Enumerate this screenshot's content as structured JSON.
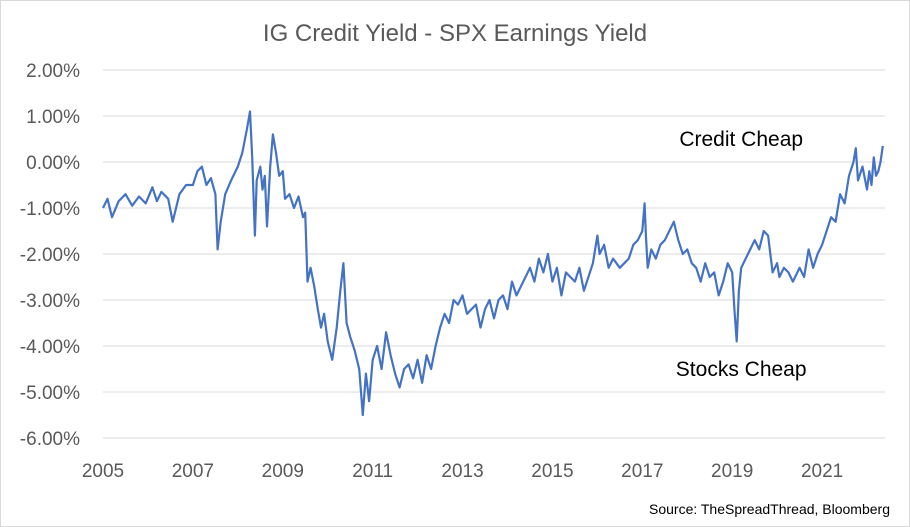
{
  "chart_data": {
    "type": "line",
    "title": "IG Credit Yield - SPX Earnings Yield",
    "xlabel": "",
    "ylabel": "",
    "xlim": [
      2005,
      2022.4
    ],
    "ylim": [
      -6,
      2
    ],
    "x_ticks": [
      "2005",
      "2007",
      "2009",
      "2011",
      "2013",
      "2015",
      "2017",
      "2019",
      "2021"
    ],
    "y_ticks": [
      "2.00%",
      "1.00%",
      "0.00%",
      "-1.00%",
      "-2.00%",
      "-3.00%",
      "-4.00%",
      "-5.00%",
      "-6.00%"
    ],
    "grid": "horizontal",
    "line_color": "#4472C4",
    "annotations": [
      {
        "text": "Credit Cheap",
        "x": 2019.2,
        "y": 0.5
      },
      {
        "text": "Stocks Cheap",
        "x": 2019.2,
        "y": -4.5
      }
    ],
    "source": "Source: TheSpreadThread, Bloomberg",
    "series": [
      {
        "points": [
          [
            2005.0,
            -1.0
          ],
          [
            2005.1,
            -0.8
          ],
          [
            2005.2,
            -1.2
          ],
          [
            2005.35,
            -0.85
          ],
          [
            2005.5,
            -0.7
          ],
          [
            2005.65,
            -0.95
          ],
          [
            2005.8,
            -0.75
          ],
          [
            2005.95,
            -0.9
          ],
          [
            2006.1,
            -0.55
          ],
          [
            2006.2,
            -0.85
          ],
          [
            2006.3,
            -0.65
          ],
          [
            2006.45,
            -0.8
          ],
          [
            2006.55,
            -1.3
          ],
          [
            2006.7,
            -0.7
          ],
          [
            2006.85,
            -0.5
          ],
          [
            2007.0,
            -0.5
          ],
          [
            2007.1,
            -0.2
          ],
          [
            2007.2,
            -0.1
          ],
          [
            2007.3,
            -0.5
          ],
          [
            2007.4,
            -0.35
          ],
          [
            2007.5,
            -0.7
          ],
          [
            2007.55,
            -1.9
          ],
          [
            2007.62,
            -1.3
          ],
          [
            2007.72,
            -0.7
          ],
          [
            2007.85,
            -0.4
          ],
          [
            2008.0,
            -0.1
          ],
          [
            2008.1,
            0.2
          ],
          [
            2008.2,
            0.7
          ],
          [
            2008.27,
            1.1
          ],
          [
            2008.32,
            0.1
          ],
          [
            2008.38,
            -1.6
          ],
          [
            2008.42,
            -0.4
          ],
          [
            2008.5,
            -0.1
          ],
          [
            2008.55,
            -0.6
          ],
          [
            2008.6,
            -0.3
          ],
          [
            2008.65,
            -1.4
          ],
          [
            2008.72,
            -0.1
          ],
          [
            2008.78,
            0.6
          ],
          [
            2008.85,
            0.2
          ],
          [
            2008.92,
            -0.3
          ],
          [
            2009.0,
            -0.2
          ],
          [
            2009.05,
            -0.8
          ],
          [
            2009.15,
            -0.7
          ],
          [
            2009.25,
            -1.0
          ],
          [
            2009.35,
            -0.75
          ],
          [
            2009.45,
            -1.2
          ],
          [
            2009.5,
            -1.1
          ],
          [
            2009.55,
            -2.6
          ],
          [
            2009.62,
            -2.3
          ],
          [
            2009.7,
            -2.7
          ],
          [
            2009.78,
            -3.2
          ],
          [
            2009.85,
            -3.6
          ],
          [
            2009.92,
            -3.3
          ],
          [
            2010.0,
            -3.9
          ],
          [
            2010.1,
            -4.3
          ],
          [
            2010.2,
            -3.6
          ],
          [
            2010.28,
            -2.8
          ],
          [
            2010.35,
            -2.2
          ],
          [
            2010.42,
            -3.5
          ],
          [
            2010.5,
            -3.8
          ],
          [
            2010.6,
            -4.1
          ],
          [
            2010.7,
            -4.5
          ],
          [
            2010.78,
            -5.5
          ],
          [
            2010.85,
            -4.6
          ],
          [
            2010.92,
            -5.2
          ],
          [
            2011.0,
            -4.3
          ],
          [
            2011.1,
            -4.0
          ],
          [
            2011.2,
            -4.5
          ],
          [
            2011.3,
            -3.7
          ],
          [
            2011.4,
            -4.2
          ],
          [
            2011.5,
            -4.6
          ],
          [
            2011.6,
            -4.9
          ],
          [
            2011.7,
            -4.5
          ],
          [
            2011.8,
            -4.4
          ],
          [
            2011.9,
            -4.7
          ],
          [
            2012.0,
            -4.3
          ],
          [
            2012.1,
            -4.8
          ],
          [
            2012.2,
            -4.2
          ],
          [
            2012.3,
            -4.5
          ],
          [
            2012.4,
            -4.0
          ],
          [
            2012.5,
            -3.6
          ],
          [
            2012.6,
            -3.3
          ],
          [
            2012.7,
            -3.5
          ],
          [
            2012.8,
            -3.0
          ],
          [
            2012.9,
            -3.1
          ],
          [
            2013.0,
            -2.9
          ],
          [
            2013.1,
            -3.3
          ],
          [
            2013.2,
            -3.2
          ],
          [
            2013.3,
            -3.1
          ],
          [
            2013.4,
            -3.6
          ],
          [
            2013.5,
            -3.2
          ],
          [
            2013.6,
            -3.0
          ],
          [
            2013.7,
            -3.4
          ],
          [
            2013.8,
            -3.0
          ],
          [
            2013.9,
            -2.9
          ],
          [
            2014.0,
            -3.2
          ],
          [
            2014.1,
            -2.6
          ],
          [
            2014.2,
            -2.9
          ],
          [
            2014.3,
            -2.7
          ],
          [
            2014.4,
            -2.5
          ],
          [
            2014.5,
            -2.3
          ],
          [
            2014.6,
            -2.6
          ],
          [
            2014.7,
            -2.1
          ],
          [
            2014.8,
            -2.4
          ],
          [
            2014.9,
            -2.0
          ],
          [
            2015.0,
            -2.6
          ],
          [
            2015.1,
            -2.3
          ],
          [
            2015.2,
            -2.9
          ],
          [
            2015.3,
            -2.4
          ],
          [
            2015.4,
            -2.5
          ],
          [
            2015.5,
            -2.6
          ],
          [
            2015.6,
            -2.3
          ],
          [
            2015.7,
            -2.8
          ],
          [
            2015.8,
            -2.5
          ],
          [
            2015.9,
            -2.2
          ],
          [
            2016.0,
            -1.6
          ],
          [
            2016.05,
            -2.0
          ],
          [
            2016.15,
            -1.8
          ],
          [
            2016.25,
            -2.3
          ],
          [
            2016.35,
            -2.1
          ],
          [
            2016.5,
            -2.3
          ],
          [
            2016.6,
            -2.2
          ],
          [
            2016.7,
            -2.1
          ],
          [
            2016.8,
            -1.8
          ],
          [
            2016.9,
            -1.7
          ],
          [
            2017.0,
            -1.5
          ],
          [
            2017.05,
            -0.9
          ],
          [
            2017.08,
            -1.6
          ],
          [
            2017.12,
            -2.3
          ],
          [
            2017.2,
            -1.9
          ],
          [
            2017.3,
            -2.1
          ],
          [
            2017.4,
            -1.8
          ],
          [
            2017.5,
            -1.7
          ],
          [
            2017.6,
            -1.5
          ],
          [
            2017.7,
            -1.3
          ],
          [
            2017.8,
            -1.7
          ],
          [
            2017.9,
            -2.0
          ],
          [
            2018.0,
            -1.9
          ],
          [
            2018.1,
            -2.2
          ],
          [
            2018.2,
            -2.3
          ],
          [
            2018.3,
            -2.6
          ],
          [
            2018.4,
            -2.2
          ],
          [
            2018.5,
            -2.5
          ],
          [
            2018.6,
            -2.4
          ],
          [
            2018.7,
            -2.9
          ],
          [
            2018.8,
            -2.6
          ],
          [
            2018.9,
            -2.2
          ],
          [
            2019.0,
            -2.4
          ],
          [
            2019.05,
            -3.2
          ],
          [
            2019.1,
            -3.9
          ],
          [
            2019.15,
            -2.8
          ],
          [
            2019.2,
            -2.3
          ],
          [
            2019.3,
            -2.1
          ],
          [
            2019.4,
            -1.9
          ],
          [
            2019.5,
            -1.7
          ],
          [
            2019.6,
            -1.9
          ],
          [
            2019.7,
            -1.5
          ],
          [
            2019.8,
            -1.6
          ],
          [
            2019.9,
            -2.4
          ],
          [
            2020.0,
            -2.2
          ],
          [
            2020.05,
            -2.5
          ],
          [
            2020.15,
            -2.3
          ],
          [
            2020.25,
            -2.4
          ],
          [
            2020.35,
            -2.6
          ],
          [
            2020.5,
            -2.3
          ],
          [
            2020.6,
            -2.5
          ],
          [
            2020.7,
            -1.9
          ],
          [
            2020.8,
            -2.3
          ],
          [
            2020.9,
            -2.0
          ],
          [
            2021.0,
            -1.8
          ],
          [
            2021.1,
            -1.5
          ],
          [
            2021.2,
            -1.2
          ],
          [
            2021.3,
            -1.3
          ],
          [
            2021.4,
            -0.7
          ],
          [
            2021.5,
            -0.9
          ],
          [
            2021.6,
            -0.3
          ],
          [
            2021.7,
            0.0
          ],
          [
            2021.75,
            0.3
          ],
          [
            2021.8,
            -0.4
          ],
          [
            2021.9,
            -0.1
          ],
          [
            2022.0,
            -0.6
          ],
          [
            2022.05,
            -0.2
          ],
          [
            2022.1,
            -0.5
          ],
          [
            2022.15,
            0.1
          ],
          [
            2022.2,
            -0.3
          ],
          [
            2022.25,
            -0.2
          ],
          [
            2022.3,
            0.0
          ],
          [
            2022.35,
            0.35
          ]
        ]
      }
    ]
  }
}
